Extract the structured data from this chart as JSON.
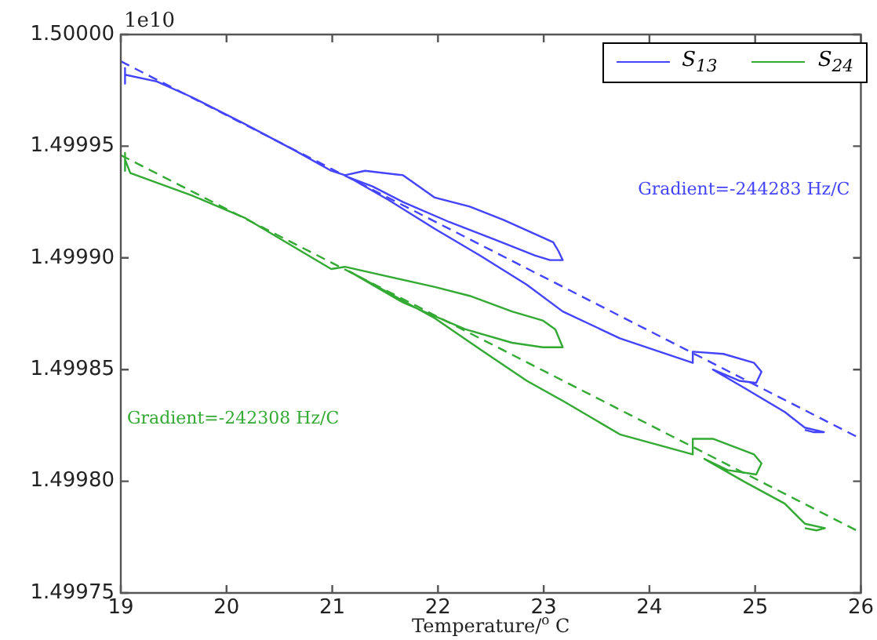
{
  "chart_data": {
    "type": "line",
    "xlabel": "Temperature/$^{o}$ C",
    "xlim": [
      19,
      26
    ],
    "xticks": [
      19,
      20,
      21,
      22,
      23,
      24,
      25,
      26
    ],
    "ylim": [
      1.49975,
      1.5
    ],
    "yticks": [
      1.49975,
      {
        "value": 1.4998,
        "label": "1.49980"
      },
      1.49985,
      {
        "value": 1.4999,
        "label": "1.49990"
      },
      1.49995,
      {
        "value": 1.5,
        "label": "1.50000"
      }
    ],
    "grid": false,
    "legend": "top right",
    "series": [
      {
        "name": "S$_{13}$",
        "color": "#4444ff",
        "x": [
          19.04,
          19.04,
          19.04,
          19.34,
          19.67,
          20.17,
          20.65,
          20.99,
          21.12,
          21.31,
          21.67,
          21.97,
          22.3,
          22.62,
          22.95,
          23.09,
          23.14,
          23.18,
          23.06,
          22.92,
          22.55,
          22.11,
          21.67,
          21.38,
          21.16,
          21.53,
          21.97,
          22.4,
          22.84,
          23.18,
          23.72,
          24.41,
          24.41,
          24.7,
          24.99,
          25.06,
          25.01,
          24.85,
          24.6,
          24.89,
          25.28,
          25.47,
          25.65,
          25.55,
          25.47
        ],
        "values": [
          1.499985,
          1.499978,
          1.499982,
          1.499979,
          1.499972,
          1.49996,
          1.499948,
          1.499939,
          1.499937,
          1.499939,
          1.499937,
          1.499927,
          1.499923,
          1.499917,
          1.49991,
          1.499907,
          1.499903,
          1.499899,
          1.499899,
          1.499901,
          1.499908,
          1.499916,
          1.499925,
          1.499932,
          1.499936,
          1.499926,
          1.499913,
          1.499901,
          1.499888,
          1.499876,
          1.499864,
          1.499853,
          1.499858,
          1.499857,
          1.499853,
          1.499849,
          1.499844,
          1.499845,
          1.49985,
          1.499842,
          1.499831,
          1.499824,
          1.499822,
          1.499822,
          1.499823
        ]
      },
      {
        "name": "S$_{24}$",
        "color": "#33aa33",
        "x": [
          19.04,
          19.04,
          19.04,
          19.09,
          19.67,
          20.17,
          20.99,
          21.12,
          21.97,
          22.3,
          22.7,
          22.99,
          23.11,
          23.18,
          22.99,
          22.7,
          22.26,
          21.67,
          21.16,
          21.97,
          22.4,
          22.84,
          23.18,
          23.72,
          24.41,
          24.41,
          24.6,
          24.99,
          25.06,
          25.01,
          24.74,
          24.52,
          24.89,
          25.28,
          25.47,
          25.66,
          25.58,
          25.47
        ],
        "values": [
          1.499947,
          1.499939,
          1.499944,
          1.499938,
          1.499928,
          1.499918,
          1.499895,
          1.499896,
          1.499887,
          1.499883,
          1.499876,
          1.499872,
          1.499868,
          1.49986,
          1.49986,
          1.499862,
          1.499868,
          1.49988,
          1.499894,
          1.499873,
          1.499859,
          1.499845,
          1.499836,
          1.499821,
          1.499812,
          1.499819,
          1.499819,
          1.499812,
          1.499808,
          1.499803,
          1.499805,
          1.49981,
          1.4998,
          1.49979,
          1.499781,
          1.499779,
          1.499778,
          1.499779
        ]
      },
      {
        "color": "#4444ff",
        "line_style": "dashed",
        "x": [
          19,
          26
        ],
        "values": [
          1.499988,
          1.499819
        ]
      },
      {
        "color": "#33aa33",
        "line_style": "dashed",
        "x": [
          19,
          26
        ],
        "values": [
          1.499946,
          1.499777
        ]
      }
    ],
    "annotations": [
      "1e10",
      "Gradient=-244283 Hz/C",
      "Gradient=-242308 Hz/C"
    ]
  }
}
